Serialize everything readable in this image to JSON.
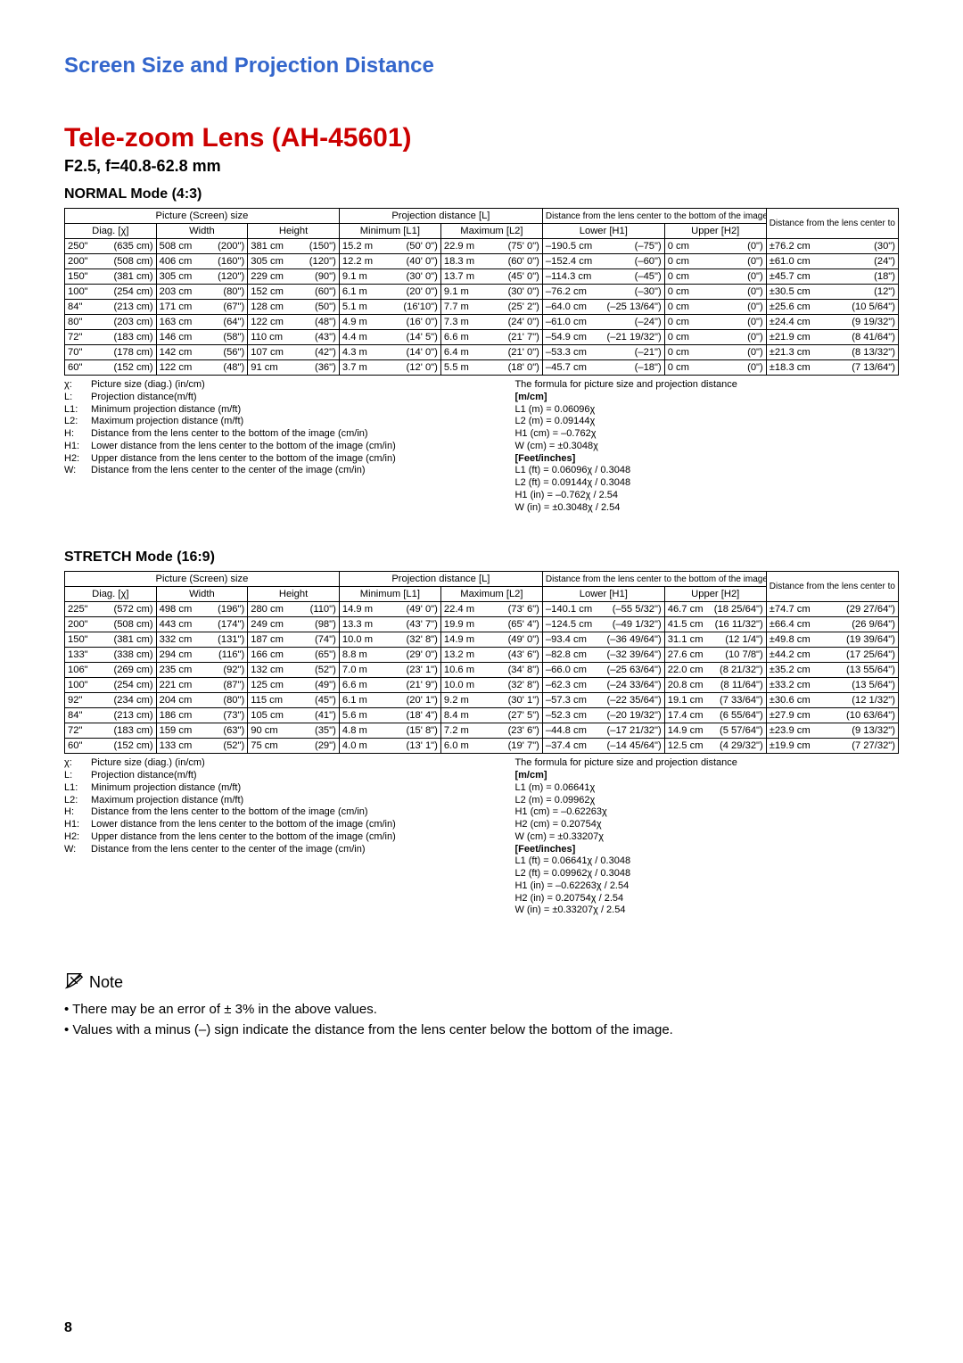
{
  "section_title": "Screen Size and Projection Distance",
  "lens_title": "Tele-zoom Lens (AH-45601)",
  "spec_line": "F2.5, f=40.8-62.8 mm",
  "page_number": "8",
  "colors": {
    "section_title": "#3366cc",
    "lens_title": "#cc0000",
    "text": "#000000",
    "border": "#000000",
    "background": "#ffffff"
  },
  "normal": {
    "title": "NORMAL Mode (4:3)",
    "headers": {
      "picture": "Picture (Screen) size",
      "diag": "Diag. [χ]",
      "width": "Width",
      "height": "Height",
      "projection": "Projection distance [L]",
      "min": "Minimum [L1]",
      "max": "Maximum [L2]",
      "distH": "Distance from the lens center to the bottom of the image [H]",
      "lower": "Lower [H1]",
      "upper": "Upper [H2]",
      "distW": "Distance from the lens center to the center of the image [W]"
    },
    "rows": [
      {
        "diag": [
          "250\"",
          "(635 cm)"
        ],
        "width": [
          "508 cm",
          "(200\")"
        ],
        "height": [
          "381 cm",
          "(150\")"
        ],
        "min": [
          "15.2 m",
          "(50'  0\")"
        ],
        "max": [
          "22.9 m",
          "(75'  0\")"
        ],
        "lower": [
          "–190.5 cm",
          "(–75\")"
        ],
        "upper": [
          "0 cm",
          "(0\")"
        ],
        "w": [
          "±76.2 cm",
          "(30\")"
        ]
      },
      {
        "diag": [
          "200\"",
          "(508 cm)"
        ],
        "width": [
          "406 cm",
          "(160\")"
        ],
        "height": [
          "305 cm",
          "(120\")"
        ],
        "min": [
          "12.2 m",
          "(40'  0\")"
        ],
        "max": [
          "18.3 m",
          "(60'  0\")"
        ],
        "lower": [
          "–152.4 cm",
          "(–60\")"
        ],
        "upper": [
          "0 cm",
          "(0\")"
        ],
        "w": [
          "±61.0 cm",
          "(24\")"
        ]
      },
      {
        "diag": [
          "150\"",
          "(381 cm)"
        ],
        "width": [
          "305 cm",
          "(120\")"
        ],
        "height": [
          "229 cm",
          "(90\")"
        ],
        "min": [
          "9.1 m",
          "(30'  0\")"
        ],
        "max": [
          "13.7 m",
          "(45'  0\")"
        ],
        "lower": [
          "–114.3 cm",
          "(–45\")"
        ],
        "upper": [
          "0 cm",
          "(0\")"
        ],
        "w": [
          "±45.7 cm",
          "(18\")"
        ]
      },
      {
        "diag": [
          "100\"",
          "(254 cm)"
        ],
        "width": [
          "203 cm",
          "(80\")"
        ],
        "height": [
          "152 cm",
          "(60\")"
        ],
        "min": [
          "6.1 m",
          "(20'  0\")"
        ],
        "max": [
          "9.1 m",
          "(30'  0\")"
        ],
        "lower": [
          "–76.2 cm",
          "(–30\")"
        ],
        "upper": [
          "0 cm",
          "(0\")"
        ],
        "w": [
          "±30.5 cm",
          "(12\")"
        ]
      },
      {
        "diag": [
          "84\"",
          "(213 cm)"
        ],
        "width": [
          "171 cm",
          "(67\")"
        ],
        "height": [
          "128 cm",
          "(50\")"
        ],
        "min": [
          "5.1 m",
          "(16'10\")"
        ],
        "max": [
          "7.7 m",
          "(25'  2\")"
        ],
        "lower": [
          "–64.0 cm",
          "(–25 13/64\")"
        ],
        "upper": [
          "0 cm",
          "(0\")"
        ],
        "w": [
          "±25.6 cm",
          "(10  5/64\")"
        ]
      },
      {
        "diag": [
          "80\"",
          "(203 cm)"
        ],
        "width": [
          "163 cm",
          "(64\")"
        ],
        "height": [
          "122 cm",
          "(48\")"
        ],
        "min": [
          "4.9 m",
          "(16'  0\")"
        ],
        "max": [
          "7.3 m",
          "(24'  0\")"
        ],
        "lower": [
          "–61.0 cm",
          "(–24\")"
        ],
        "upper": [
          "0 cm",
          "(0\")"
        ],
        "w": [
          "±24.4 cm",
          "(9 19/32\")"
        ]
      },
      {
        "diag": [
          "72\"",
          "(183 cm)"
        ],
        "width": [
          "146 cm",
          "(58\")"
        ],
        "height": [
          "110 cm",
          "(43\")"
        ],
        "min": [
          "4.4 m",
          "(14'  5\")"
        ],
        "max": [
          "6.6 m",
          "(21'  7\")"
        ],
        "lower": [
          "–54.9 cm",
          "(–21 19/32\")"
        ],
        "upper": [
          "0 cm",
          "(0\")"
        ],
        "w": [
          "±21.9 cm",
          "(8 41/64\")"
        ]
      },
      {
        "diag": [
          "70\"",
          "(178 cm)"
        ],
        "width": [
          "142 cm",
          "(56\")"
        ],
        "height": [
          "107 cm",
          "(42\")"
        ],
        "min": [
          "4.3 m",
          "(14'  0\")"
        ],
        "max": [
          "6.4 m",
          "(21'  0\")"
        ],
        "lower": [
          "–53.3 cm",
          "(–21\")"
        ],
        "upper": [
          "0 cm",
          "(0\")"
        ],
        "w": [
          "±21.3 cm",
          "(8 13/32\")"
        ]
      },
      {
        "diag": [
          "60\"",
          "(152 cm)"
        ],
        "width": [
          "122 cm",
          "(48\")"
        ],
        "height": [
          "91 cm",
          "(36\")"
        ],
        "min": [
          "3.7 m",
          "(12'  0\")"
        ],
        "max": [
          "5.5 m",
          "(18'  0\")"
        ],
        "lower": [
          "–45.7 cm",
          "(–18\")"
        ],
        "upper": [
          "0 cm",
          "(0\")"
        ],
        "w": [
          "±18.3 cm",
          "(7 13/64\")"
        ]
      }
    ],
    "legend_left": [
      [
        "χ:",
        "Picture size (diag.) (in/cm)"
      ],
      [
        "L:",
        "Projection distance(m/ft)"
      ],
      [
        "L1:",
        "Minimum projection distance (m/ft)"
      ],
      [
        "L2:",
        "Maximum projection distance (m/ft)"
      ],
      [
        "H:",
        "Distance from the lens center to the bottom of the image (cm/in)"
      ],
      [
        "H1:",
        "Lower distance from the lens center to the bottom of the image (cm/in)"
      ],
      [
        "H2:",
        "Upper distance from the lens center to the bottom of the image (cm/in)"
      ],
      [
        "W:",
        "Distance from the lens center to the center of the image (cm/in)"
      ]
    ],
    "legend_right_title": "The formula for picture size and projection distance",
    "legend_right_mcm": "[m/cm]",
    "legend_right_mcm_lines": [
      "L1 (m) = 0.06096χ",
      "L2 (m) = 0.09144χ",
      "H1 (cm) = –0.762χ",
      "W (cm) = ±0.3048χ"
    ],
    "legend_right_ft": "[Feet/inches]",
    "legend_right_ft_lines": [
      "L1 (ft) = 0.06096χ / 0.3048",
      "L2 (ft) = 0.09144χ / 0.3048",
      "H1 (in) = –0.762χ / 2.54",
      "W (in) = ±0.3048χ / 2.54"
    ]
  },
  "stretch": {
    "title": "STRETCH Mode (16:9)",
    "headers": {
      "picture": "Picture (Screen) size",
      "diag": "Diag. [χ]",
      "width": "Width",
      "height": "Height",
      "projection": "Projection distance [L]",
      "min": "Minimum [L1]",
      "max": "Maximum [L2]",
      "distH": "Distance from the lens center to the bottom of the image [H]",
      "lower": "Lower [H1]",
      "upper": "Upper [H2]",
      "distW": "Distance from the lens center to the center of the image [W]"
    },
    "rows": [
      {
        "diag": [
          "225\"",
          "(572 cm)"
        ],
        "width": [
          "498 cm",
          "(196\")"
        ],
        "height": [
          "280 cm",
          "(110\")"
        ],
        "min": [
          "14.9 m",
          "(49'  0\")"
        ],
        "max": [
          "22.4 m",
          "(73'  6\")"
        ],
        "lower": [
          "–140.1 cm",
          "(–55  5/32\")"
        ],
        "upper": [
          "46.7 cm",
          "(18 25/64\")"
        ],
        "w": [
          "±74.7 cm",
          "(29 27/64\")"
        ]
      },
      {
        "diag": [
          "200\"",
          "(508 cm)"
        ],
        "width": [
          "443 cm",
          "(174\")"
        ],
        "height": [
          "249 cm",
          "(98\")"
        ],
        "min": [
          "13.3 m",
          "(43'  7\")"
        ],
        "max": [
          "19.9 m",
          "(65'  4\")"
        ],
        "lower": [
          "–124.5 cm",
          "(–49  1/32\")"
        ],
        "upper": [
          "41.5 cm",
          "(16 11/32\")"
        ],
        "w": [
          "±66.4 cm",
          "(26  9/64\")"
        ]
      },
      {
        "diag": [
          "150\"",
          "(381 cm)"
        ],
        "width": [
          "332 cm",
          "(131\")"
        ],
        "height": [
          "187 cm",
          "(74\")"
        ],
        "min": [
          "10.0 m",
          "(32'  8\")"
        ],
        "max": [
          "14.9 m",
          "(49'  0\")"
        ],
        "lower": [
          "–93.4 cm",
          "(–36 49/64\")"
        ],
        "upper": [
          "31.1 cm",
          "(12  1/4\")"
        ],
        "w": [
          "±49.8 cm",
          "(19 39/64\")"
        ]
      },
      {
        "diag": [
          "133\"",
          "(338 cm)"
        ],
        "width": [
          "294 cm",
          "(116\")"
        ],
        "height": [
          "166 cm",
          "(65\")"
        ],
        "min": [
          "8.8 m",
          "(29'  0\")"
        ],
        "max": [
          "13.2 m",
          "(43'  6\")"
        ],
        "lower": [
          "–82.8 cm",
          "(–32 39/64\")"
        ],
        "upper": [
          "27.6 cm",
          "(10  7/8\")"
        ],
        "w": [
          "±44.2 cm",
          "(17 25/64\")"
        ]
      },
      {
        "diag": [
          "106\"",
          "(269 cm)"
        ],
        "width": [
          "235 cm",
          "(92\")"
        ],
        "height": [
          "132 cm",
          "(52\")"
        ],
        "min": [
          "7.0 m",
          "(23'  1\")"
        ],
        "max": [
          "10.6 m",
          "(34'  8\")"
        ],
        "lower": [
          "–66.0 cm",
          "(–25 63/64\")"
        ],
        "upper": [
          "22.0 cm",
          "(8 21/32\")"
        ],
        "w": [
          "±35.2 cm",
          "(13 55/64\")"
        ]
      },
      {
        "diag": [
          "100\"",
          "(254 cm)"
        ],
        "width": [
          "221 cm",
          "(87\")"
        ],
        "height": [
          "125 cm",
          "(49\")"
        ],
        "min": [
          "6.6 m",
          "(21'  9\")"
        ],
        "max": [
          "10.0 m",
          "(32'  8\")"
        ],
        "lower": [
          "–62.3 cm",
          "(–24 33/64\")"
        ],
        "upper": [
          "20.8 cm",
          "(8 11/64\")"
        ],
        "w": [
          "±33.2 cm",
          "(13  5/64\")"
        ]
      },
      {
        "diag": [
          "92\"",
          "(234 cm)"
        ],
        "width": [
          "204 cm",
          "(80\")"
        ],
        "height": [
          "115 cm",
          "(45\")"
        ],
        "min": [
          "6.1 m",
          "(20'  1\")"
        ],
        "max": [
          "9.2 m",
          "(30'  1\")"
        ],
        "lower": [
          "–57.3 cm",
          "(–22 35/64\")"
        ],
        "upper": [
          "19.1 cm",
          "(7 33/64\")"
        ],
        "w": [
          "±30.6 cm",
          "(12  1/32\")"
        ]
      },
      {
        "diag": [
          "84\"",
          "(213 cm)"
        ],
        "width": [
          "186 cm",
          "(73\")"
        ],
        "height": [
          "105 cm",
          "(41\")"
        ],
        "min": [
          "5.6 m",
          "(18'  4\")"
        ],
        "max": [
          "8.4 m",
          "(27'  5\")"
        ],
        "lower": [
          "–52.3 cm",
          "(–20 19/32\")"
        ],
        "upper": [
          "17.4 cm",
          "(6 55/64\")"
        ],
        "w": [
          "±27.9 cm",
          "(10 63/64\")"
        ]
      },
      {
        "diag": [
          "72\"",
          "(183 cm)"
        ],
        "width": [
          "159 cm",
          "(63\")"
        ],
        "height": [
          "90 cm",
          "(35\")"
        ],
        "min": [
          "4.8 m",
          "(15'  8\")"
        ],
        "max": [
          "7.2 m",
          "(23'  6\")"
        ],
        "lower": [
          "–44.8 cm",
          "(–17 21/32\")"
        ],
        "upper": [
          "14.9 cm",
          "(5 57/64\")"
        ],
        "w": [
          "±23.9 cm",
          "(9 13/32\")"
        ]
      },
      {
        "diag": [
          "60\"",
          "(152 cm)"
        ],
        "width": [
          "133 cm",
          "(52\")"
        ],
        "height": [
          "75 cm",
          "(29\")"
        ],
        "min": [
          "4.0 m",
          "(13'  1\")"
        ],
        "max": [
          "6.0 m",
          "(19'  7\")"
        ],
        "lower": [
          "–37.4 cm",
          "(–14 45/64\")"
        ],
        "upper": [
          "12.5 cm",
          "(4 29/32\")"
        ],
        "w": [
          "±19.9 cm",
          "(7 27/32\")"
        ]
      }
    ],
    "legend_left": [
      [
        "χ:",
        "Picture size (diag.) (in/cm)"
      ],
      [
        "L:",
        "Projection distance(m/ft)"
      ],
      [
        "L1:",
        "Minimum projection distance (m/ft)"
      ],
      [
        "L2:",
        "Maximum projection distance (m/ft)"
      ],
      [
        "H:",
        "Distance from the lens center to the bottom of the image (cm/in)"
      ],
      [
        "H1:",
        "Lower distance from the lens center to the bottom of the image (cm/in)"
      ],
      [
        "H2:",
        "Upper distance from the lens center to the bottom of the image (cm/in)"
      ],
      [
        "W:",
        "Distance from the lens center to the center of the image (cm/in)"
      ]
    ],
    "legend_right_title": "The formula for picture size and projection distance",
    "legend_right_mcm": "[m/cm]",
    "legend_right_mcm_lines": [
      "L1 (m) = 0.06641χ",
      "L2 (m) = 0.09962χ",
      "H1 (cm) = –0.62263χ",
      "H2 (cm) = 0.20754χ",
      "W (cm) = ±0.33207χ"
    ],
    "legend_right_ft": "[Feet/inches]",
    "legend_right_ft_lines": [
      "L1 (ft) = 0.06641χ / 0.3048",
      "L2 (ft) = 0.09962χ / 0.3048",
      "H1 (in) = –0.62263χ / 2.54",
      "H2 (in) = 0.20754χ / 2.54",
      "W (in) = ±0.33207χ / 2.54"
    ]
  },
  "note": {
    "title": "Note",
    "bullets": [
      "There may be an error of ± 3% in the above values.",
      "Values with a minus (–) sign indicate the distance from the lens center below the bottom of the image."
    ]
  },
  "col_widths": [
    "90",
    "90",
    "90",
    "100",
    "100",
    "120",
    "100",
    "130"
  ]
}
